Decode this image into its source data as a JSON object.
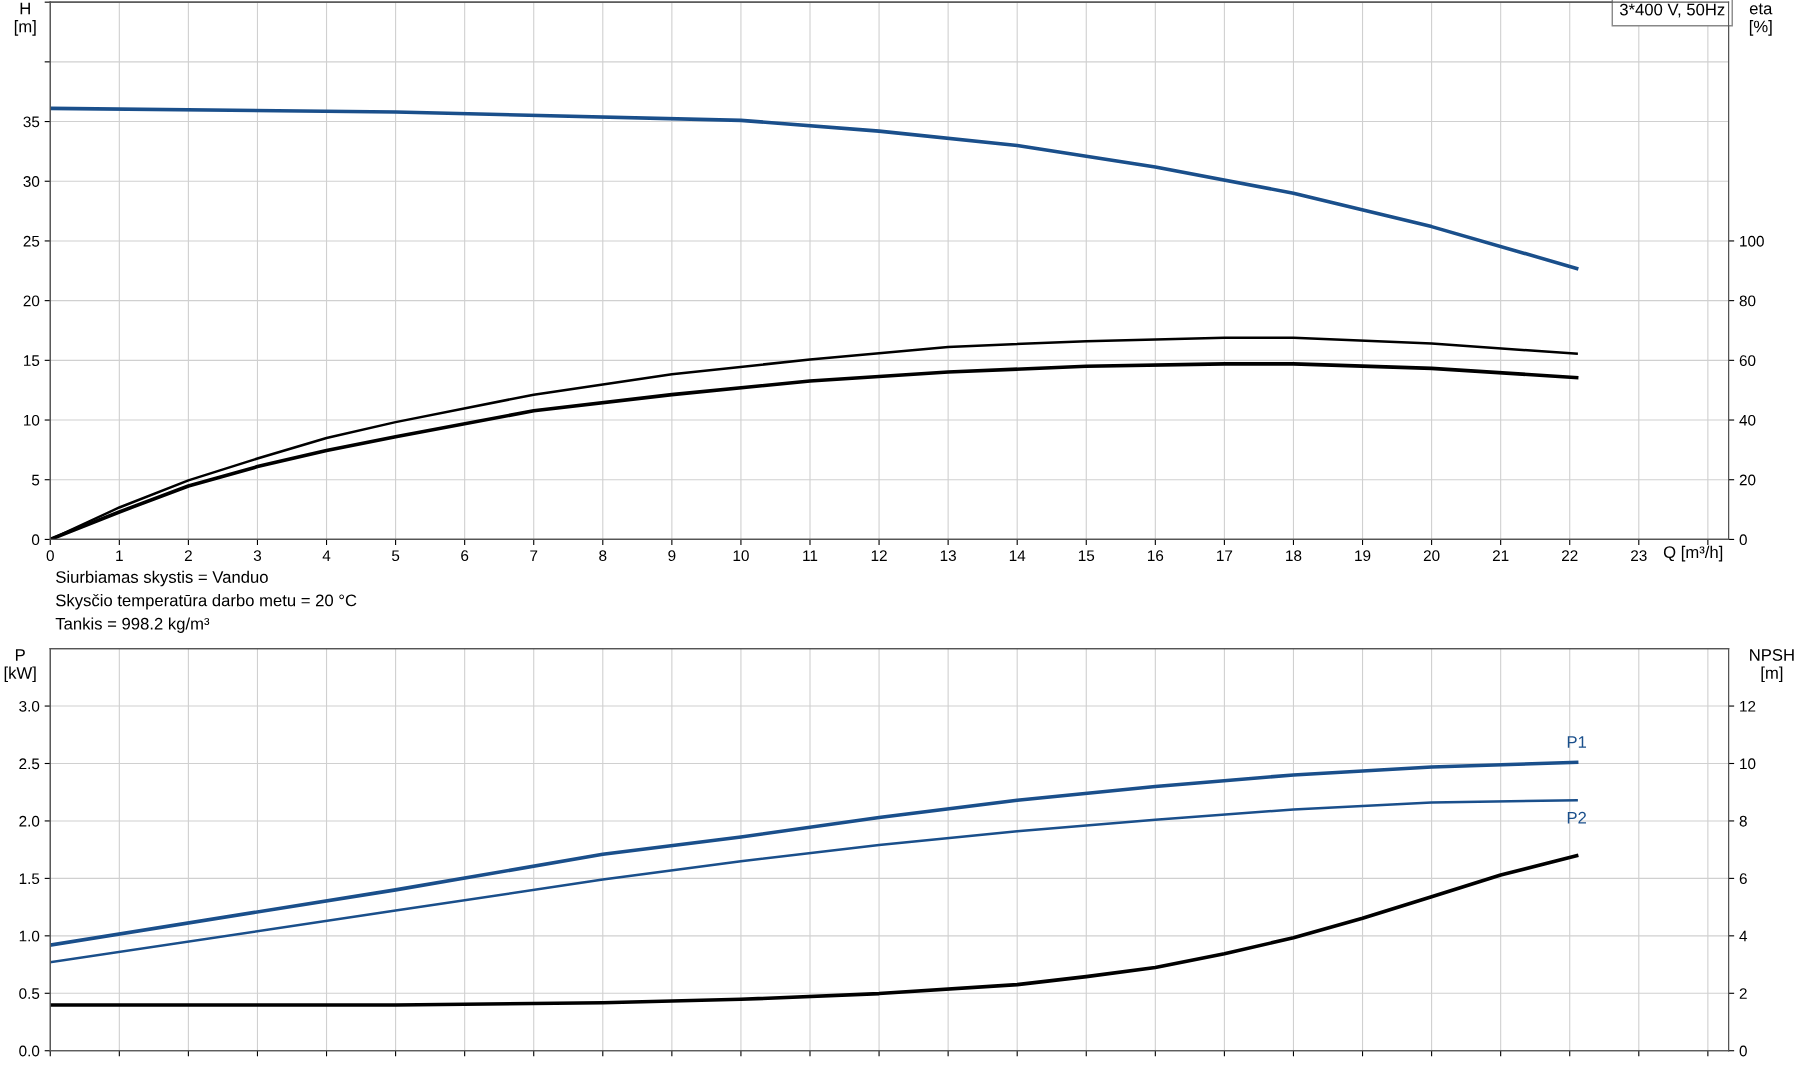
{
  "chart_data": [
    {
      "type": "line",
      "xlabel": "Q [m³/h]",
      "ylabel": "H\n[m]",
      "y2label": "eta\n[%]",
      "annotations": [
        "3*400 V, 50Hz"
      ],
      "xlim": [
        0,
        24.3
      ],
      "xticks": [
        0,
        1,
        2,
        3,
        4,
        5,
        6,
        7,
        8,
        9,
        10,
        11,
        12,
        13,
        14,
        15,
        16,
        17,
        18,
        19,
        20,
        21,
        22,
        23,
        {
          "value": 24,
          "label": null
        }
      ],
      "ylim": [
        0,
        45
      ],
      "yticks": [
        0,
        5,
        10,
        15,
        20,
        25,
        30,
        35,
        {
          "value": 40,
          "label": null
        },
        {
          "value": 45,
          "label": null
        }
      ],
      "y2lim": [
        0,
        180
      ],
      "y2ticks": [
        0,
        20,
        40,
        60,
        80,
        100
      ],
      "grid": true,
      "legend": false,
      "marker": "none",
      "line_style": "solid",
      "series": [
        {
          "color": "#1a4f8b",
          "x": [
            0,
            5,
            10,
            12,
            14,
            16,
            18,
            20,
            22.1
          ],
          "values": [
            36.1,
            35.8,
            35.1,
            34.2,
            33.0,
            31.2,
            29.0,
            26.2,
            22.7
          ]
        },
        {
          "color": "#000000",
          "axis": "y2",
          "x": [
            0,
            1,
            2,
            3,
            4,
            5,
            7,
            9,
            11,
            13,
            15,
            17,
            18,
            20,
            22.1
          ],
          "values": [
            0,
            10.7,
            19.8,
            27.1,
            34,
            39.3,
            48.5,
            55.3,
            60.3,
            64.5,
            66.4,
            67.6,
            67.6,
            65.6,
            62.2
          ]
        },
        {
          "color": "#000000",
          "axis": "y2",
          "x": [
            0,
            1,
            2,
            3,
            4,
            5,
            7,
            9,
            11,
            13,
            15,
            17,
            18,
            20,
            22.1
          ],
          "values": [
            0,
            9.2,
            17.9,
            24.4,
            29.8,
            34.4,
            43.1,
            48.5,
            53.1,
            56.1,
            58,
            58.8,
            58.8,
            57.3,
            54.2
          ]
        }
      ]
    },
    {
      "type": "line",
      "ylabel": "P\n[kW]",
      "y2label": "NPSH\n[m]",
      "annotations": [
        "Siurbiamas skystis = Vanduo",
        "Skysčio temperatūra darbo metu = 20 °C",
        "Tankis = 998.2 kg/m³"
      ],
      "xlim": [
        0,
        24.3
      ],
      "xticks": [
        0,
        1,
        2,
        3,
        4,
        5,
        6,
        7,
        8,
        9,
        10,
        11,
        12,
        13,
        14,
        15,
        16,
        17,
        18,
        19,
        20,
        21,
        22,
        23,
        24
      ],
      "ylim": [
        0,
        3.5
      ],
      "yticks": [
        {
          "value": 0,
          "label": "0.0"
        },
        {
          "value": 0.5,
          "label": "0.5"
        },
        {
          "value": 1,
          "label": "1.0"
        },
        {
          "value": 1.5,
          "label": "1.5"
        },
        {
          "value": 2,
          "label": "2.0"
        },
        {
          "value": 2.5,
          "label": "2.5"
        },
        {
          "value": 3,
          "label": "3.0"
        }
      ],
      "y2lim": [
        0,
        14
      ],
      "y2ticks": [
        0,
        2,
        4,
        6,
        8,
        10,
        12
      ],
      "tick_labels": "y",
      "grid": true,
      "legend": false,
      "marker": "none",
      "line_style": "solid",
      "series": [
        {
          "name": "P1",
          "color": "#1a4f8b",
          "x": [
            0,
            5,
            8,
            10,
            12,
            14,
            16,
            18,
            20,
            22.1
          ],
          "values": [
            0.92,
            1.4,
            1.71,
            1.86,
            2.03,
            2.18,
            2.3,
            2.4,
            2.47,
            2.51
          ]
        },
        {
          "name": "P2",
          "color": "#1a4f8b",
          "x": [
            0,
            5,
            8,
            10,
            12,
            14,
            16,
            18,
            20,
            22.1
          ],
          "values": [
            0.77,
            1.22,
            1.49,
            1.65,
            1.79,
            1.91,
            2.01,
            2.1,
            2.16,
            2.18
          ]
        },
        {
          "color": "#000000",
          "axis": "y2",
          "x": [
            0,
            5,
            8,
            10,
            12,
            14,
            15,
            16,
            17,
            18,
            19,
            20,
            21,
            22.1
          ],
          "values": [
            1.59,
            1.59,
            1.67,
            1.79,
            1.99,
            2.3,
            2.58,
            2.9,
            3.38,
            3.93,
            4.61,
            5.36,
            6.12,
            6.79
          ]
        }
      ]
    }
  ]
}
